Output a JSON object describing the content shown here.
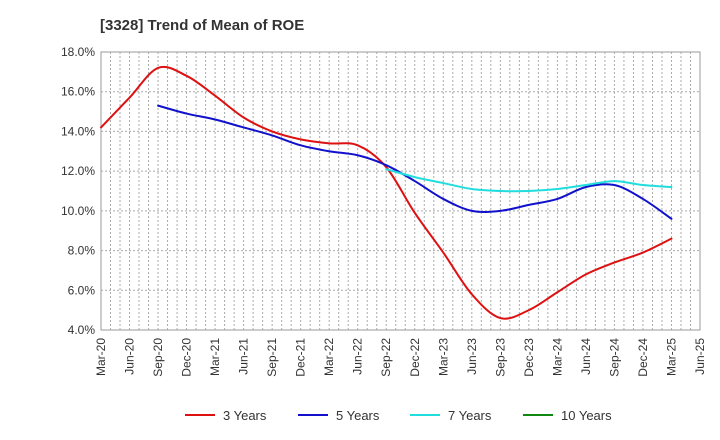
{
  "chart_data": {
    "type": "line",
    "title": "[3328]  Trend of Mean of ROE",
    "xlabel": "",
    "ylabel": "",
    "ylim": [
      4.0,
      18.0
    ],
    "y_ticks": [
      "4.0%",
      "6.0%",
      "8.0%",
      "10.0%",
      "12.0%",
      "14.0%",
      "16.0%",
      "18.0%"
    ],
    "y_tick_values": [
      4,
      6,
      8,
      10,
      12,
      14,
      16,
      18
    ],
    "categories": [
      "Mar-20",
      "Jun-20",
      "Sep-20",
      "Dec-20",
      "Mar-21",
      "Jun-21",
      "Sep-21",
      "Dec-21",
      "Mar-22",
      "Jun-22",
      "Sep-22",
      "Dec-22",
      "Mar-23",
      "Jun-23",
      "Sep-23",
      "Dec-23",
      "Mar-24",
      "Jun-24",
      "Sep-24",
      "Dec-24",
      "Mar-25",
      "Jun-25"
    ],
    "grid": true,
    "legend_position": "bottom",
    "series": [
      {
        "name": "3 Years",
        "color": "#dd1111",
        "values": [
          14.2,
          15.7,
          17.2,
          16.8,
          15.8,
          14.7,
          14.0,
          13.6,
          13.4,
          13.3,
          12.2,
          9.9,
          7.9,
          5.8,
          4.6,
          5.0,
          5.9,
          6.8,
          7.4,
          7.9,
          8.6,
          null
        ]
      },
      {
        "name": "5 Years",
        "color": "#1111cc",
        "values": [
          null,
          null,
          15.3,
          14.9,
          14.6,
          14.2,
          13.8,
          13.3,
          13.0,
          12.8,
          12.3,
          11.5,
          10.6,
          10.0,
          10.0,
          10.3,
          10.6,
          11.2,
          11.3,
          10.6,
          9.6,
          null
        ]
      },
      {
        "name": "7 Years",
        "color": "#22dddd",
        "values": [
          null,
          null,
          null,
          null,
          null,
          null,
          null,
          null,
          null,
          null,
          12.1,
          11.7,
          11.4,
          11.1,
          11.0,
          11.0,
          11.1,
          11.3,
          11.5,
          11.3,
          11.2,
          null
        ]
      },
      {
        "name": "10 Years",
        "color": "#118811",
        "values": [
          null,
          null,
          null,
          null,
          null,
          null,
          null,
          null,
          null,
          null,
          null,
          null,
          null,
          null,
          null,
          null,
          null,
          null,
          null,
          null,
          null,
          null
        ]
      }
    ]
  }
}
